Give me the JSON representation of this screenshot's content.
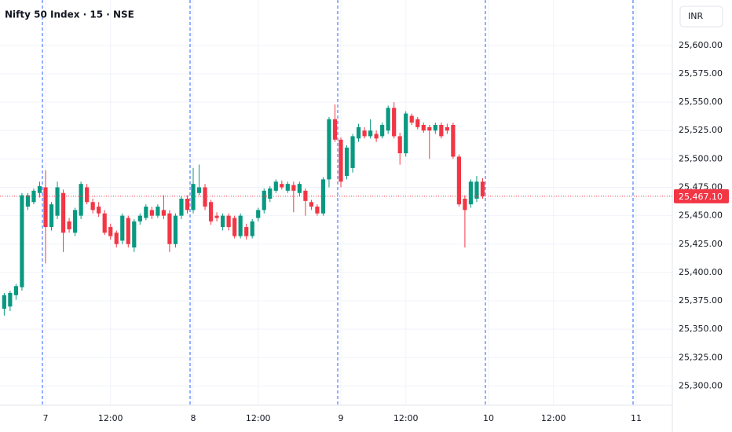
{
  "chart_data": {
    "type": "candlestick",
    "title": "Nifty 50 Index · 15 · NSE",
    "currency": "INR",
    "up_color": "#089981",
    "down_color": "#f23645",
    "grid": true,
    "categories": [
      null,
      null,
      null,
      null,
      null,
      null,
      null,
      "7",
      null,
      null,
      null,
      null,
      null,
      null,
      null,
      null,
      null,
      null,
      "12:00",
      null,
      null,
      null,
      null,
      null,
      null,
      null,
      null,
      null,
      null,
      null,
      null,
      null,
      "8",
      null,
      null,
      null,
      null,
      null,
      null,
      null,
      null,
      null,
      null,
      "12:00",
      null,
      null,
      null,
      null,
      null,
      null,
      null,
      null,
      null,
      null,
      null,
      null,
      null,
      "9",
      null,
      null,
      null,
      null,
      null,
      null,
      null,
      null,
      null,
      null,
      "12:00",
      null,
      null,
      null,
      null,
      null,
      null,
      null,
      null,
      null,
      null,
      null,
      null,
      null
    ],
    "future_categories": [
      "10",
      "12:00",
      "11"
    ],
    "open": [
      25368,
      25370,
      25380,
      25387,
      25458,
      25462,
      25470,
      25475,
      25440,
      25450,
      25470,
      25445,
      25435,
      25450,
      25475,
      25462,
      25458,
      25452,
      25440,
      25435,
      25428,
      25448,
      25422,
      25445,
      25448,
      25455,
      25450,
      25455,
      25452,
      25425,
      25450,
      25465,
      25455,
      25470,
      25475,
      25462,
      25450,
      25440,
      25450,
      25448,
      25432,
      25440,
      25432,
      25448,
      25455,
      25465,
      25472,
      25478,
      25472,
      25477,
      25470,
      25472,
      25462,
      25458,
      25452,
      25482,
      25535,
      25517,
      25485,
      25492,
      25518,
      25525,
      25520,
      25522,
      25520,
      25525,
      25545,
      25520,
      25505,
      25538,
      25535,
      25530,
      25528,
      25525,
      25530,
      25528,
      25530,
      25502,
      25465,
      25460,
      25465,
      25480
    ],
    "high": [
      25382,
      25384,
      25390,
      25470,
      25470,
      25474,
      25480,
      25490,
      25462,
      25480,
      25473,
      25448,
      25457,
      25480,
      25478,
      25465,
      25462,
      25455,
      25443,
      25437,
      25452,
      25450,
      25447,
      25452,
      25460,
      25458,
      25460,
      25468,
      25455,
      25452,
      25467,
      25468,
      25492,
      25495,
      25478,
      25464,
      25453,
      25452,
      25452,
      25450,
      25452,
      25443,
      25447,
      25457,
      25474,
      25476,
      25482,
      25481,
      25480,
      25480,
      25480,
      25474,
      25464,
      25460,
      25484,
      25537,
      25548,
      25519,
      25512,
      25522,
      25531,
      25528,
      25535,
      25525,
      25532,
      25547,
      25550,
      25523,
      25542,
      25540,
      25537,
      25532,
      25530,
      25532,
      25532,
      25531,
      25532,
      25504,
      25468,
      25482,
      25485,
      25483
    ],
    "low": [
      25362,
      25366,
      25376,
      25384,
      25455,
      25460,
      25466,
      25408,
      25437,
      25447,
      25418,
      25435,
      25432,
      25447,
      25460,
      25452,
      25449,
      25433,
      25429,
      25422,
      25425,
      25422,
      25418,
      25442,
      25446,
      25447,
      25448,
      25447,
      25418,
      25422,
      25447,
      25452,
      25452,
      25468,
      25455,
      25442,
      25445,
      25437,
      25437,
      25430,
      25430,
      25429,
      25430,
      25445,
      25452,
      25462,
      25470,
      25473,
      25470,
      25453,
      25467,
      25450,
      25455,
      25450,
      25450,
      25475,
      25515,
      25475,
      25482,
      25488,
      25515,
      25518,
      25518,
      25515,
      25518,
      25522,
      25518,
      25495,
      25502,
      25530,
      25526,
      25523,
      25500,
      25522,
      25518,
      25522,
      25500,
      25458,
      25422,
      25457,
      25462,
      25465
    ],
    "close": [
      25380,
      25382,
      25388,
      25468,
      25468,
      25472,
      25476,
      25440,
      25460,
      25475,
      25435,
      25438,
      25455,
      25478,
      25462,
      25455,
      25452,
      25435,
      25432,
      25425,
      25450,
      25425,
      25445,
      25450,
      25458,
      25450,
      25458,
      25450,
      25425,
      25450,
      25465,
      25455,
      25478,
      25475,
      25458,
      25445,
      25448,
      25450,
      25440,
      25432,
      25450,
      25432,
      25445,
      25455,
      25472,
      25474,
      25480,
      25475,
      25478,
      25472,
      25478,
      25463,
      25458,
      25452,
      25482,
      25535,
      25517,
      25480,
      25510,
      25520,
      25528,
      25520,
      25525,
      25518,
      25530,
      25545,
      25520,
      25505,
      25540,
      25532,
      25528,
      25525,
      25525,
      25530,
      25520,
      25525,
      25502,
      25460,
      25455,
      25480,
      25480,
      25467.1
    ],
    "last_price": {
      "value": 25467.1,
      "label": "25,467.10"
    },
    "ylim": [
      25283,
      25640
    ],
    "yticks": [
      {
        "value": 25300,
        "label": "25,300.00"
      },
      {
        "value": 25325,
        "label": "25,325.00"
      },
      {
        "value": 25350,
        "label": "25,350.00"
      },
      {
        "value": 25375,
        "label": "25,375.00"
      },
      {
        "value": 25400,
        "label": "25,400.00"
      },
      {
        "value": 25425,
        "label": "25,425.00"
      },
      {
        "value": 25450,
        "label": "25,450.00"
      },
      {
        "value": 25475,
        "label": "25,475.00"
      },
      {
        "value": 25500,
        "label": "25,500.00"
      },
      {
        "value": 25525,
        "label": "25,525.00"
      },
      {
        "value": 25550,
        "label": "25,550.00"
      },
      {
        "value": 25575,
        "label": "25,575.00"
      },
      {
        "value": 25600,
        "label": "25,600.00"
      }
    ]
  }
}
